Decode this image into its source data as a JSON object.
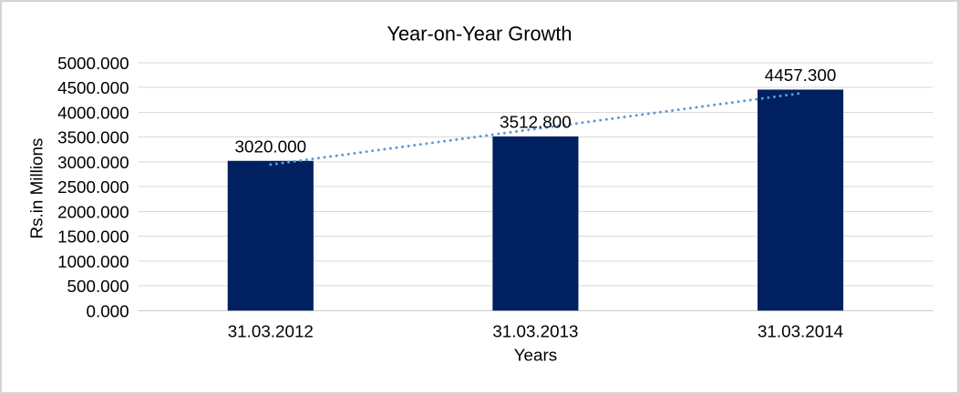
{
  "chart_data": {
    "type": "bar",
    "title": "Year-on-Year Growth",
    "xlabel": "Years",
    "ylabel": "Rs.in Millions",
    "categories": [
      "31.03.2012",
      "31.03.2013",
      "31.03.2014"
    ],
    "values": [
      3020.0,
      3512.8,
      4457.3
    ],
    "data_labels": [
      "3020.000",
      "3512.800",
      "4457.300"
    ],
    "ylim": [
      0,
      5000
    ],
    "ytick_step": 500,
    "ytick_labels": [
      "0.000",
      "500.000",
      "1000.000",
      "1500.000",
      "2000.000",
      "2500.000",
      "3000.000",
      "3500.000",
      "4000.000",
      "4500.000",
      "5000.000"
    ],
    "grid": true,
    "legend": "none",
    "trendline": {
      "type": "linear",
      "style": "dotted"
    },
    "colors": {
      "bar": "#002060",
      "trendline": "#5B9BD5",
      "gridline": "#D9D9D9",
      "axis_line": "#C9C9C9",
      "text": "#000000",
      "background": "#FFFFFF",
      "frame_border": "#D5D5D5"
    }
  }
}
